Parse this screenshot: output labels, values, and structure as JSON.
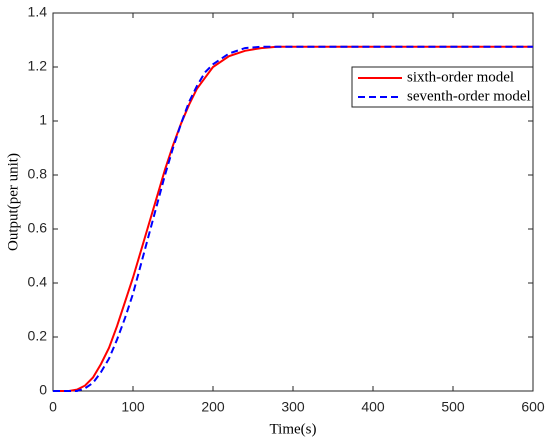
{
  "chart_data": {
    "type": "line",
    "xlabel": "Time(s)",
    "ylabel": "Output(per unit)",
    "x": [
      0,
      20,
      30,
      40,
      50,
      60,
      70,
      80,
      90,
      100,
      110,
      120,
      130,
      140,
      150,
      160,
      170,
      180,
      190,
      200,
      220,
      240,
      260,
      280,
      300,
      350,
      400,
      450,
      500,
      550,
      600
    ],
    "series": [
      {
        "name": "sixth-order model",
        "color": "#ff0000",
        "dash": false,
        "values": [
          0,
          0,
          0.005,
          0.02,
          0.05,
          0.1,
          0.16,
          0.24,
          0.33,
          0.42,
          0.52,
          0.62,
          0.72,
          0.82,
          0.91,
          0.99,
          1.06,
          1.12,
          1.16,
          1.2,
          1.24,
          1.26,
          1.27,
          1.275,
          1.275,
          1.275,
          1.275,
          1.275,
          1.275,
          1.275,
          1.275
        ]
      },
      {
        "name": "seventh-order model",
        "color": "#0000ff",
        "dash": true,
        "values": [
          0,
          0,
          0,
          0.01,
          0.03,
          0.07,
          0.12,
          0.19,
          0.27,
          0.36,
          0.47,
          0.58,
          0.69,
          0.8,
          0.9,
          0.99,
          1.07,
          1.13,
          1.18,
          1.21,
          1.25,
          1.27,
          1.275,
          1.275,
          1.275,
          1.275,
          1.275,
          1.275,
          1.275,
          1.275,
          1.275
        ]
      }
    ],
    "xlim": [
      0,
      600
    ],
    "xticks": [
      0,
      100,
      200,
      300,
      400,
      500,
      600
    ],
    "ylim": [
      0,
      1.4
    ],
    "yticks": [
      0,
      0.2,
      0.4,
      0.6,
      0.8,
      1,
      1.2,
      1.4
    ],
    "grid": false,
    "legend": "upper right"
  }
}
